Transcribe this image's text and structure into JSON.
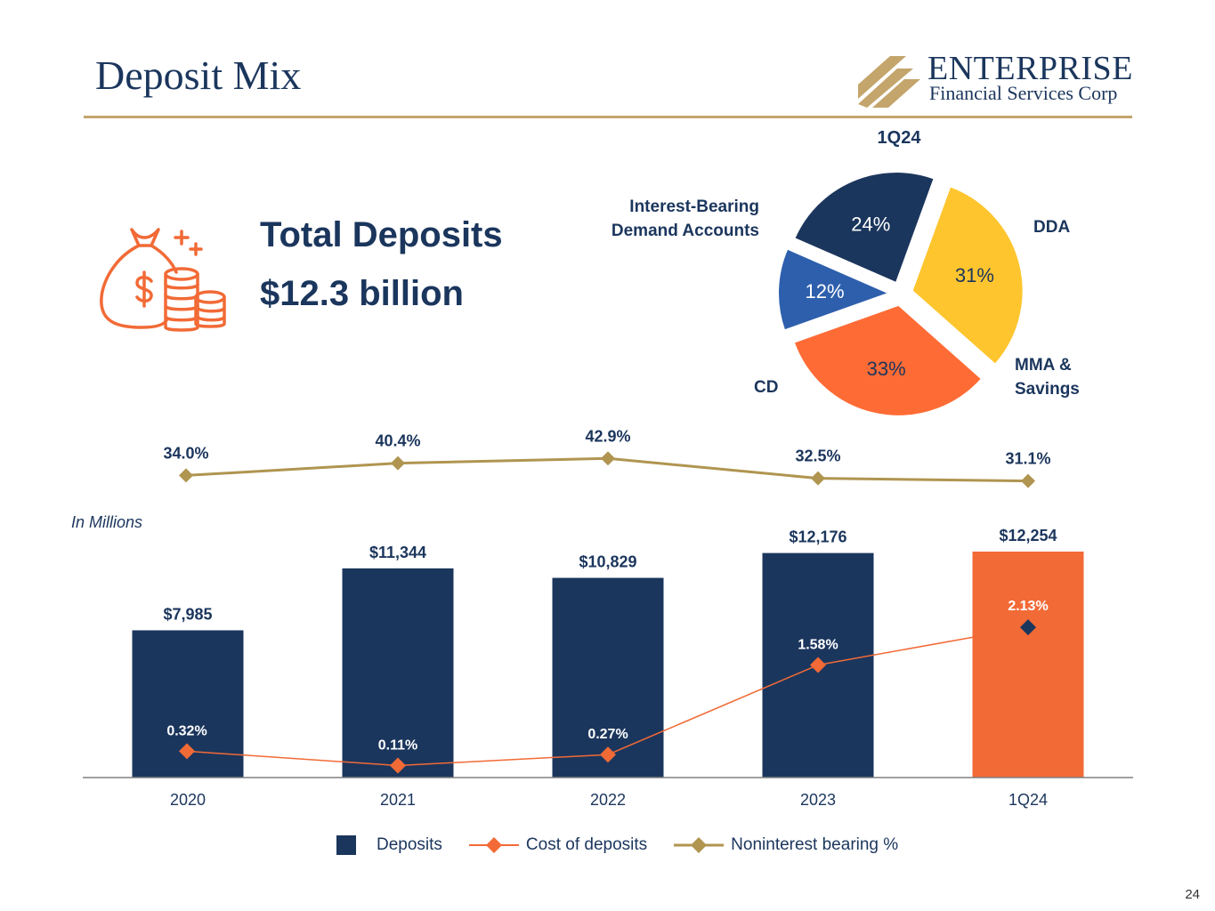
{
  "page": {
    "title": "Deposit Mix",
    "page_number": "24"
  },
  "logo": {
    "name": "ENTERPRISE",
    "subtitle": "Financial Services Corp"
  },
  "summary": {
    "title": "Total Deposits",
    "value": "$12.3 billion",
    "icon": "money-bag-coins-icon"
  },
  "units_note": "In Millions",
  "colors": {
    "navy": "#1b365d",
    "orange": "#f26a36",
    "gold": "#c4a56b",
    "yellow": "#fec52e",
    "blue": "#2e5fad",
    "pie_orange": "#ff6b35",
    "axis": "#808080"
  },
  "chart_data": [
    {
      "type": "pie",
      "title": "1Q24",
      "slices": [
        {
          "label": "DDA",
          "value": 31,
          "value_label": "31%",
          "color": "#fec52e"
        },
        {
          "label": "MMA & Savings",
          "value": 33,
          "value_label": "33%",
          "color": "#ff6b35"
        },
        {
          "label": "CD",
          "value": 12,
          "value_label": "12%",
          "color": "#2e5fad"
        },
        {
          "label": "Interest-Bearing Demand Accounts",
          "value": 24,
          "value_label": "24%",
          "color": "#1b365d"
        }
      ],
      "label_lines": {
        "dda": [
          "DDA"
        ],
        "mma": [
          "MMA &",
          "Savings"
        ],
        "cd": [
          "CD"
        ],
        "ibda": [
          "Interest-Bearing",
          "Demand Accounts"
        ]
      }
    },
    {
      "type": "bar",
      "categories": [
        "2020",
        "2021",
        "2022",
        "2023",
        "1Q24"
      ],
      "ylabel": "In Millions",
      "ylim": [
        0,
        12800
      ],
      "series": [
        {
          "name": "Deposits",
          "values": [
            7985,
            11344,
            10829,
            12176,
            12254
          ],
          "labels": [
            "$7,985",
            "$11,344",
            "$10,829",
            "$12,176",
            "$12,254"
          ],
          "highlight_index": 4
        },
        {
          "name": "Cost of deposits",
          "type": "line",
          "values": [
            0.32,
            0.11,
            0.27,
            1.58,
            2.13
          ],
          "labels": [
            "0.32%",
            "0.11%",
            "0.27%",
            "1.58%",
            "2.13%"
          ],
          "ylim": [
            0,
            3.9
          ]
        },
        {
          "name": "Noninterest bearing %",
          "type": "line",
          "values": [
            34.0,
            40.4,
            42.9,
            32.5,
            31.1
          ],
          "labels": [
            "34.0%",
            "40.4%",
            "42.9%",
            "32.5%",
            "31.1%"
          ],
          "ylim": [
            -29,
            50
          ]
        }
      ],
      "legend": [
        "Deposits",
        "Cost of deposits",
        "Noninterest bearing %"
      ],
      "legend_position": "bottom"
    }
  ]
}
